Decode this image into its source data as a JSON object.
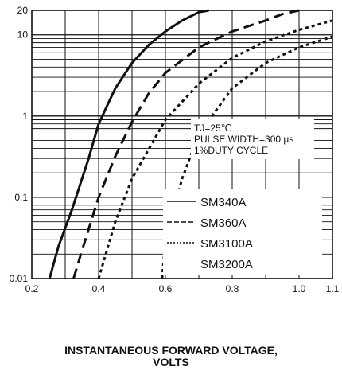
{
  "chart_data": {
    "type": "line",
    "xlabel": [
      "INSTANTANEOUS FORWARD VOLTAGE,",
      "VOLTS"
    ],
    "ylabel": "",
    "xlim": [
      0.2,
      1.1
    ],
    "ylim": [
      0.01,
      20
    ],
    "y_scale": "log",
    "grid": true,
    "x_ticks": [
      {
        "v": 0.2,
        "label": "0.2"
      },
      {
        "v": 0.4,
        "label": "0.4"
      },
      {
        "v": 0.6,
        "label": "0.6"
      },
      {
        "v": 0.8,
        "label": "0.8"
      },
      {
        "v": 1.0,
        "label": "1.0"
      },
      {
        "v": 1.1,
        "label": "1.1"
      }
    ],
    "y_ticks": [
      {
        "v": 0.01,
        "label": "0.01"
      },
      {
        "v": 0.1,
        "label": "0.1"
      },
      {
        "v": 1,
        "label": "1"
      },
      {
        "v": 10,
        "label": "10"
      },
      {
        "v": 20,
        "label": "20"
      }
    ],
    "conditions": [
      "TJ=25℃",
      "PULSE WIDTH=300 μs",
      "1%DUTY CYCLE"
    ],
    "legend_position": "lower-right",
    "series": [
      {
        "name": "SM340A",
        "style": "solid",
        "x": [
          0.253,
          0.28,
          0.32,
          0.37,
          0.4,
          0.45,
          0.5,
          0.55,
          0.6,
          0.65,
          0.7,
          0.73
        ],
        "y": [
          0.01,
          0.025,
          0.07,
          0.3,
          0.8,
          2.2,
          4.5,
          7.5,
          11,
          15,
          19,
          20
        ]
      },
      {
        "name": "SM360A",
        "style": "dashed",
        "x": [
          0.325,
          0.35,
          0.4,
          0.45,
          0.5,
          0.55,
          0.6,
          0.7,
          0.8,
          0.9,
          0.95,
          1.0
        ],
        "y": [
          0.01,
          0.022,
          0.1,
          0.32,
          0.85,
          1.9,
          3.4,
          7,
          11,
          15,
          18,
          20
        ]
      },
      {
        "name": "SM3100A",
        "style": "dotted",
        "x": [
          0.4,
          0.45,
          0.5,
          0.6,
          0.7,
          0.8,
          0.9,
          1.0,
          1.1
        ],
        "y": [
          0.01,
          0.05,
          0.17,
          0.9,
          2.5,
          5.2,
          8.3,
          11.5,
          15
        ]
      },
      {
        "name": "SM3200A",
        "style": "dotted",
        "x": [
          0.59,
          0.6,
          0.65,
          0.7,
          0.8,
          0.9,
          1.0,
          1.1
        ],
        "y": [
          0.01,
          0.03,
          0.17,
          0.6,
          2.2,
          4.5,
          7,
          9.5
        ]
      }
    ]
  }
}
